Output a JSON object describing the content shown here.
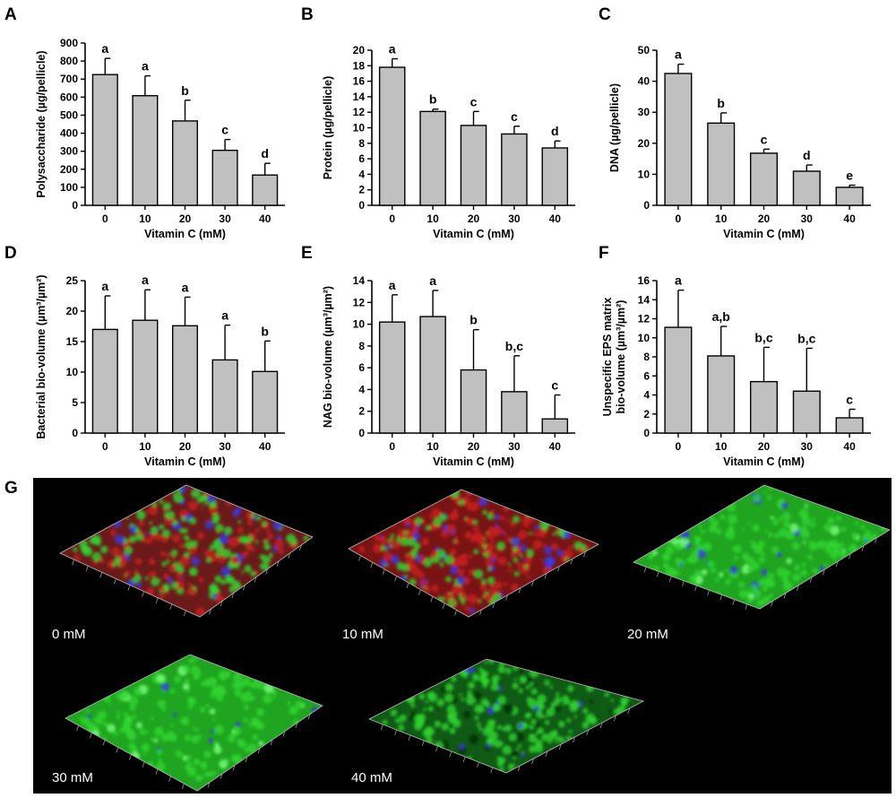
{
  "figure": {
    "colors": {
      "bar_fill": "#c0c0c0",
      "bar_stroke": "#000000",
      "micro_background": "#000000",
      "stain_green": "#2fd62f",
      "stain_red": "#c81e1e",
      "stain_blue": "#3a3ae6"
    }
  },
  "chart_data": [
    {
      "panel": "A",
      "type": "bar",
      "xlabel": "Vitamin C (mM)",
      "ylabel": "Polysaccharide (µg/pellicle)",
      "categories": [
        "0",
        "10",
        "20",
        "30",
        "40"
      ],
      "values": [
        725,
        608,
        468,
        305,
        168
      ],
      "errors": [
        90,
        110,
        115,
        60,
        65
      ],
      "significance": [
        "a",
        "a",
        "b",
        "c",
        "d"
      ],
      "ylim": [
        0,
        900
      ],
      "yticks": [
        0,
        100,
        200,
        300,
        400,
        500,
        600,
        700,
        800,
        900
      ],
      "grid": false
    },
    {
      "panel": "B",
      "type": "bar",
      "xlabel": "Vitamin C (mM)",
      "ylabel": "Protein (µg/pellicle)",
      "categories": [
        "0",
        "10",
        "20",
        "30",
        "40"
      ],
      "values": [
        17.8,
        12.1,
        10.3,
        9.2,
        7.4
      ],
      "errors": [
        1.1,
        0.3,
        1.8,
        1.0,
        0.9
      ],
      "significance": [
        "a",
        "b",
        "c",
        "c",
        "d"
      ],
      "ylim": [
        0,
        20
      ],
      "yticks": [
        0,
        2,
        4,
        6,
        8,
        10,
        12,
        14,
        16,
        18,
        20
      ],
      "grid": false
    },
    {
      "panel": "C",
      "type": "bar",
      "xlabel": "Vitamin C (mM)",
      "ylabel": "DNA (µg/pellicle)",
      "categories": [
        "0",
        "10",
        "20",
        "30",
        "40"
      ],
      "values": [
        42.5,
        26.5,
        16.8,
        11.0,
        5.8
      ],
      "errors": [
        3.0,
        3.3,
        1.3,
        2.0,
        0.7
      ],
      "significance": [
        "a",
        "b",
        "c",
        "d",
        "e"
      ],
      "ylim": [
        0,
        50
      ],
      "yticks": [
        0,
        10,
        20,
        30,
        40,
        50
      ],
      "grid": false
    },
    {
      "panel": "D",
      "type": "bar",
      "xlabel": "Vitamin C (mM)",
      "ylabel": "Bacterial bio-volume (µm³/µm²)",
      "categories": [
        "0",
        "10",
        "20",
        "30",
        "40"
      ],
      "values": [
        17.0,
        18.5,
        17.6,
        12.0,
        10.1
      ],
      "errors": [
        5.5,
        5.0,
        4.7,
        5.7,
        5.0
      ],
      "significance": [
        "a",
        "a",
        "a",
        "a",
        "b"
      ],
      "ylim": [
        0,
        25
      ],
      "yticks": [
        0,
        5,
        10,
        15,
        20,
        25
      ],
      "grid": false
    },
    {
      "panel": "E",
      "type": "bar",
      "xlabel": "Vitamin C (mM)",
      "ylabel": "NAG bio-volume (µm³/µm²)",
      "categories": [
        "0",
        "10",
        "20",
        "30",
        "40"
      ],
      "values": [
        10.2,
        10.7,
        5.8,
        3.8,
        1.3
      ],
      "errors": [
        2.5,
        2.4,
        3.7,
        3.3,
        2.2
      ],
      "significance": [
        "a",
        "a",
        "b",
        "b,c",
        "c"
      ],
      "ylim": [
        0,
        14
      ],
      "yticks": [
        0,
        2,
        4,
        6,
        8,
        10,
        12,
        14
      ],
      "grid": false
    },
    {
      "panel": "F",
      "type": "bar",
      "xlabel": "Vitamin C (mM)",
      "ylabel": "Unspecific EPS matrix bio-volume (µm³/µm²)",
      "ylabel_lines": [
        "Unspecific EPS matrix",
        "bio-volume (µm³/µm²)"
      ],
      "categories": [
        "0",
        "10",
        "20",
        "30",
        "40"
      ],
      "values": [
        11.1,
        8.1,
        5.4,
        4.4,
        1.6
      ],
      "errors": [
        3.9,
        3.1,
        3.6,
        4.5,
        0.9
      ],
      "significance": [
        "a",
        "a,b",
        "b,c",
        "b,c",
        "c"
      ],
      "ylim": [
        0,
        16
      ],
      "yticks": [
        0,
        2,
        4,
        6,
        8,
        10,
        12,
        14,
        16
      ],
      "grid": false
    }
  ],
  "micrographs": {
    "panel": "G",
    "images": [
      {
        "label": "0 mM",
        "dominant": "mixed"
      },
      {
        "label": "10 mM",
        "dominant": "red"
      },
      {
        "label": "20 mM",
        "dominant": "green"
      },
      {
        "label": "30 mM",
        "dominant": "green"
      },
      {
        "label": "40 mM",
        "dominant": "green-sparse"
      }
    ]
  }
}
